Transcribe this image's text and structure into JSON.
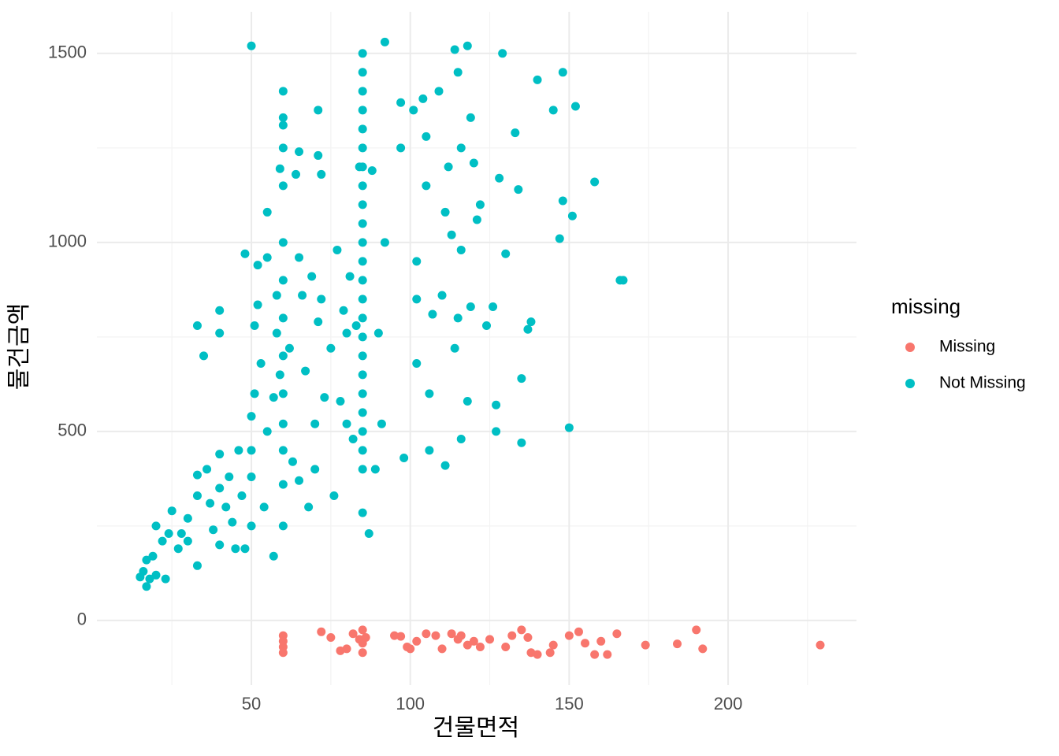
{
  "chart_data": {
    "type": "scatter",
    "x_label": "건물면적",
    "y_label": "물건금액",
    "legend_title": "missing",
    "xlim": [
      1.4,
      240.4
    ],
    "ylim": [
      -171,
      1610
    ],
    "xticks": [
      50,
      100,
      150,
      200
    ],
    "yticks": [
      0,
      500,
      1000,
      1500
    ],
    "minor_xticks": [
      25,
      75,
      125,
      175,
      225
    ],
    "minor_yticks": [
      250,
      750,
      1250
    ],
    "grid": true,
    "legend": "right",
    "series": [
      {
        "name": "Missing",
        "color": "#F8766D",
        "x": [
          60,
          60,
          60,
          60,
          72,
          75,
          78,
          80,
          82,
          84,
          85,
          85,
          85,
          86,
          95,
          97,
          99,
          100,
          102,
          105,
          108,
          110,
          113,
          115,
          116,
          118,
          120,
          122,
          125,
          130,
          132,
          135,
          137,
          138,
          140,
          144,
          145,
          150,
          153,
          155,
          158,
          160,
          162,
          165,
          174,
          184,
          190,
          192,
          229
        ],
        "values": [
          -40,
          -55,
          -70,
          -85,
          -30,
          -45,
          -80,
          -75,
          -35,
          -50,
          -25,
          -60,
          -85,
          -45,
          -40,
          -42,
          -70,
          -75,
          -55,
          -35,
          -40,
          -75,
          -35,
          -50,
          -40,
          -65,
          -55,
          -70,
          -50,
          -70,
          -40,
          -25,
          -45,
          -85,
          -90,
          -85,
          -65,
          -40,
          -30,
          -60,
          -90,
          -55,
          -90,
          -35,
          -65,
          -62,
          -25,
          -75,
          -65
        ]
      },
      {
        "name": "Not Missing",
        "color": "#00BFC4",
        "x": [
          15,
          16,
          17,
          17,
          18,
          19,
          20,
          20,
          22,
          23,
          24,
          25,
          27,
          28,
          30,
          30,
          33,
          33,
          33,
          33,
          35,
          36,
          37,
          38,
          40,
          40,
          40,
          40,
          40,
          42,
          43,
          44,
          45,
          46,
          47,
          48,
          48,
          50,
          50,
          50,
          50,
          50,
          51,
          51,
          52,
          52,
          53,
          54,
          55,
          55,
          55,
          57,
          57,
          58,
          58,
          59,
          59,
          60,
          60,
          60,
          60,
          60,
          60,
          60,
          60,
          60,
          60,
          60,
          60,
          60,
          60,
          62,
          63,
          64,
          65,
          65,
          65,
          66,
          67,
          68,
          69,
          70,
          70,
          71,
          71,
          71,
          72,
          72,
          73,
          75,
          76,
          77,
          78,
          79,
          80,
          80,
          81,
          82,
          83,
          84,
          85,
          85,
          85,
          85,
          85,
          85,
          85,
          85,
          85,
          85,
          85,
          85,
          85,
          85,
          85,
          85,
          85,
          85,
          85,
          85,
          85,
          85,
          85,
          85,
          87,
          88,
          89,
          90,
          91,
          92,
          92,
          97,
          97,
          98,
          101,
          102,
          102,
          102,
          104,
          105,
          105,
          106,
          106,
          107,
          109,
          110,
          111,
          111,
          112,
          113,
          114,
          114,
          115,
          115,
          116,
          116,
          116,
          118,
          118,
          119,
          119,
          120,
          121,
          122,
          124,
          126,
          127,
          127,
          128,
          129,
          130,
          133,
          134,
          135,
          135,
          137,
          138,
          140,
          145,
          147,
          148,
          148,
          150,
          151,
          152,
          158,
          166,
          167
        ],
        "values": [
          115,
          130,
          90,
          160,
          110,
          170,
          120,
          250,
          210,
          110,
          230,
          290,
          190,
          230,
          270,
          210,
          330,
          385,
          145,
          780,
          700,
          400,
          310,
          240,
          820,
          760,
          440,
          350,
          200,
          300,
          380,
          260,
          190,
          450,
          330,
          970,
          190,
          540,
          450,
          380,
          250,
          1520,
          600,
          780,
          835,
          940,
          680,
          300,
          1080,
          960,
          500,
          170,
          590,
          760,
          860,
          1195,
          650,
          1400,
          1330,
          1310,
          1250,
          1150,
          1000,
          900,
          800,
          700,
          600,
          520,
          450,
          360,
          250,
          720,
          420,
          1180,
          1240,
          960,
          370,
          860,
          660,
          300,
          910,
          520,
          400,
          1230,
          1350,
          790,
          1180,
          850,
          590,
          720,
          330,
          980,
          580,
          820,
          760,
          520,
          910,
          480,
          780,
          1200,
          1500,
          1450,
          1400,
          1350,
          1300,
          1250,
          1200,
          1150,
          1100,
          1050,
          1000,
          950,
          900,
          850,
          800,
          750,
          700,
          650,
          600,
          550,
          500,
          450,
          400,
          285,
          230,
          1190,
          400,
          760,
          520,
          1530,
          1000,
          1370,
          1250,
          430,
          1350,
          950,
          850,
          680,
          1380,
          1280,
          1150,
          600,
          450,
          810,
          1400,
          860,
          1080,
          410,
          1200,
          1020,
          1510,
          720,
          1450,
          800,
          1250,
          980,
          480,
          1520,
          580,
          1330,
          830,
          1210,
          1060,
          1100,
          780,
          830,
          570,
          500,
          1170,
          1500,
          970,
          1290,
          1140,
          640,
          470,
          770,
          790,
          1430,
          1350,
          1010,
          1110,
          1450,
          510,
          1070,
          1360,
          1160,
          900,
          900
        ]
      }
    ]
  }
}
